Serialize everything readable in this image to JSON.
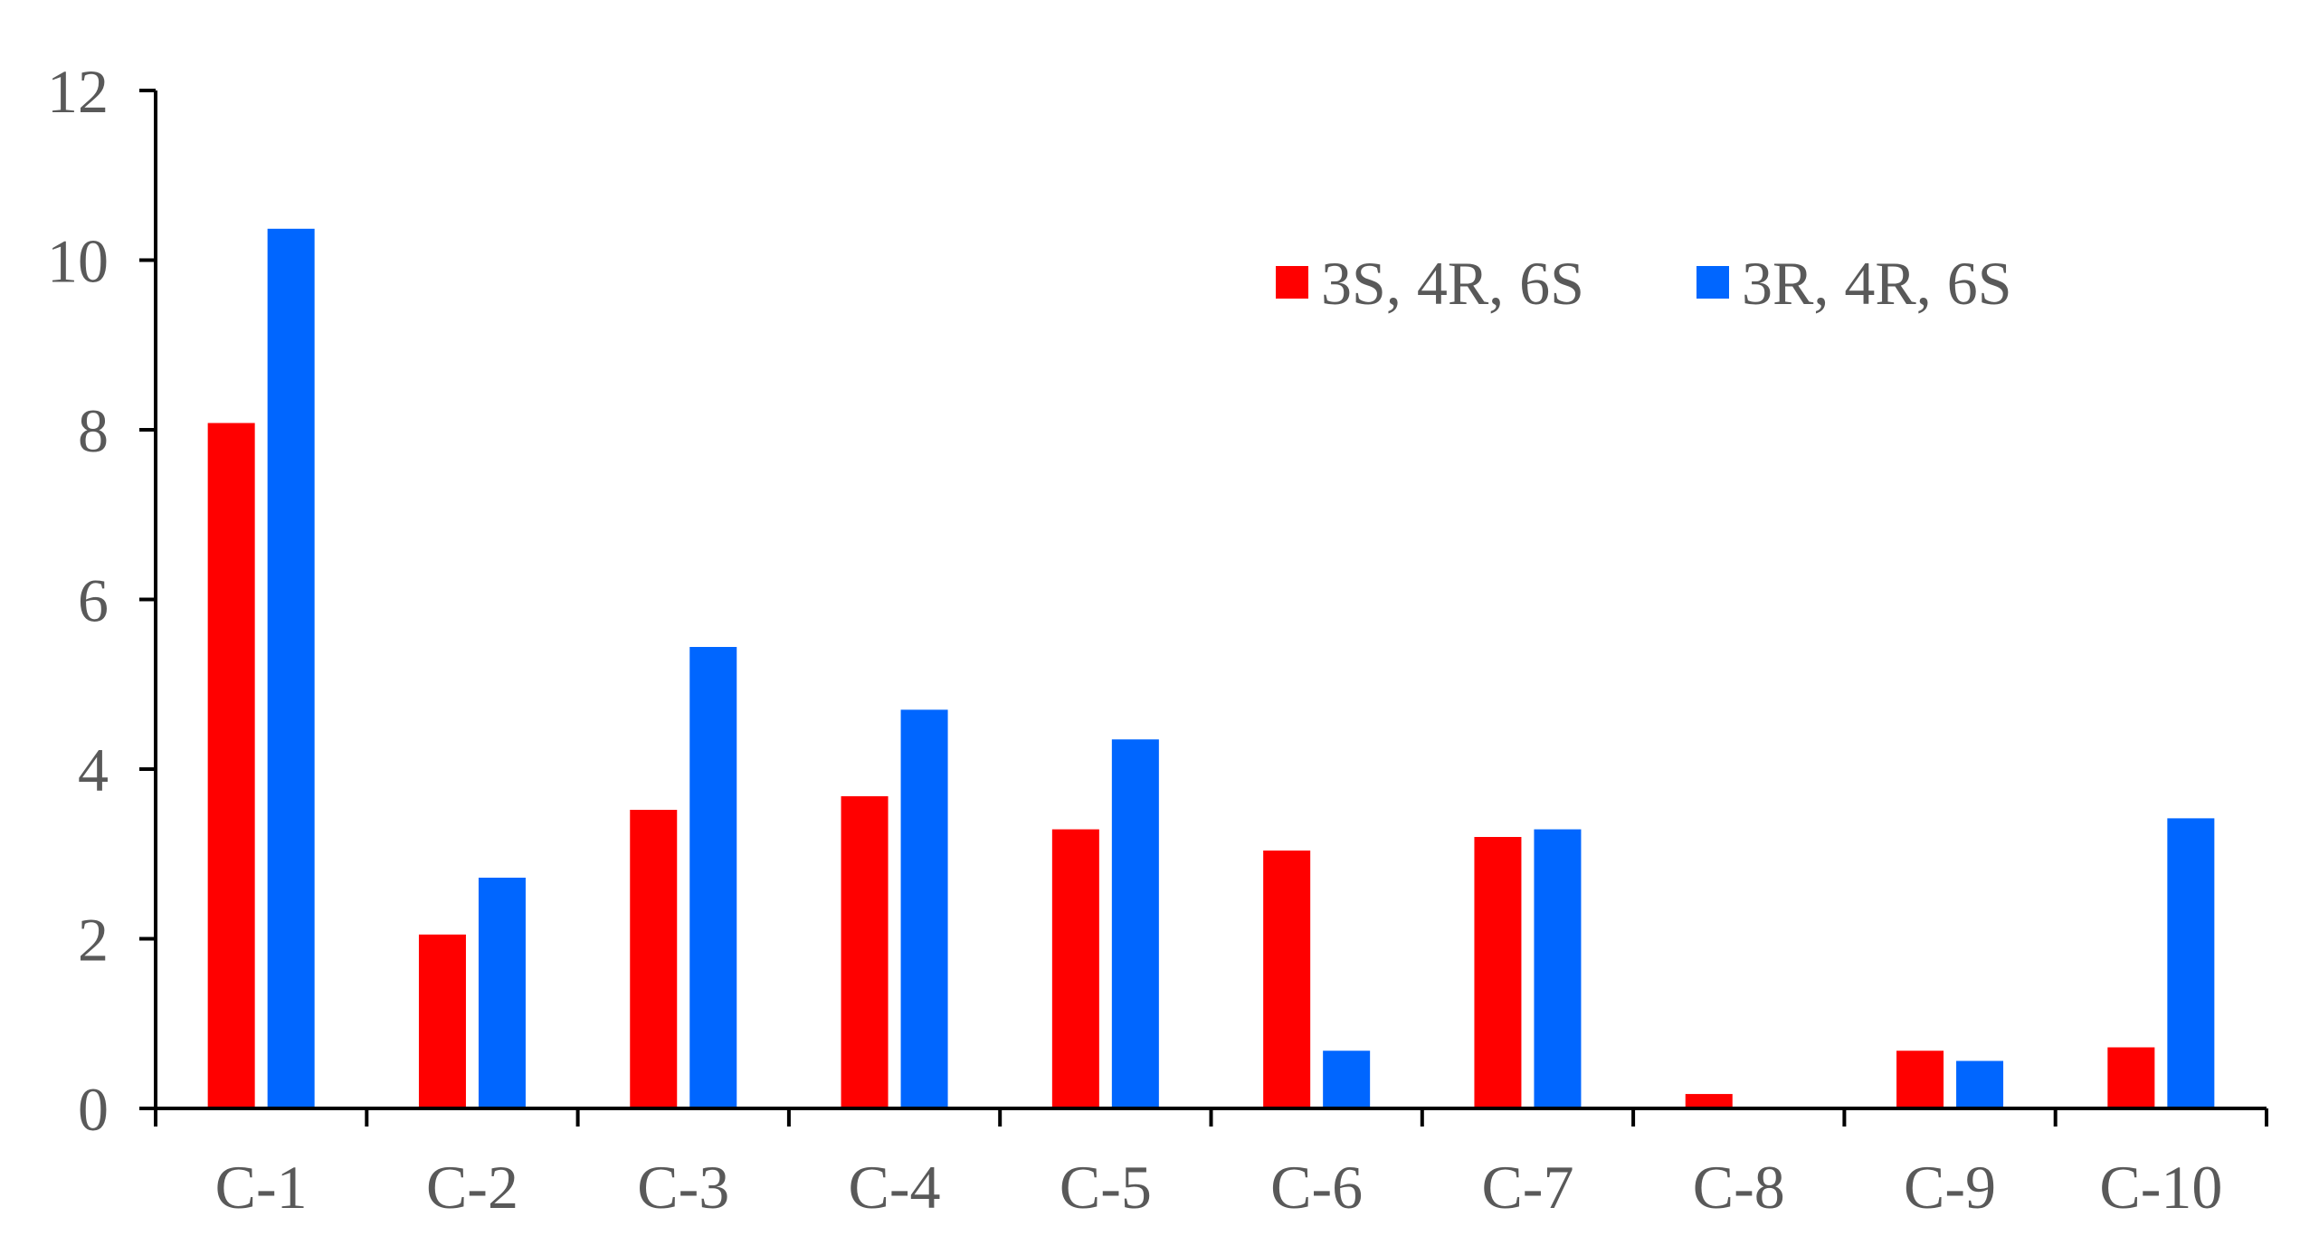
{
  "chart_data": {
    "type": "bar",
    "title": "",
    "xlabel": "",
    "ylabel": "",
    "categories": [
      "C-1",
      "C-2",
      "C-3",
      "C-4",
      "C-5",
      "C-6",
      "C-7",
      "C-8",
      "C-9",
      "C-10"
    ],
    "series": [
      {
        "name": "3S, 4R, 6S",
        "color": "#ff0000",
        "values": [
          8.08,
          2.05,
          3.52,
          3.68,
          3.29,
          3.04,
          3.2,
          0.17,
          0.68,
          0.72
        ]
      },
      {
        "name": "3R, 4R, 6S",
        "color": "#0066ff",
        "values": [
          10.37,
          2.72,
          5.44,
          4.7,
          4.35,
          0.68,
          3.29,
          0.0,
          0.56,
          3.42
        ]
      }
    ],
    "ylim": [
      0,
      12
    ],
    "yticks": [
      "0",
      "2",
      "4",
      "6",
      "8",
      "10",
      "12"
    ],
    "grid": false,
    "legend_position": "top-right"
  }
}
